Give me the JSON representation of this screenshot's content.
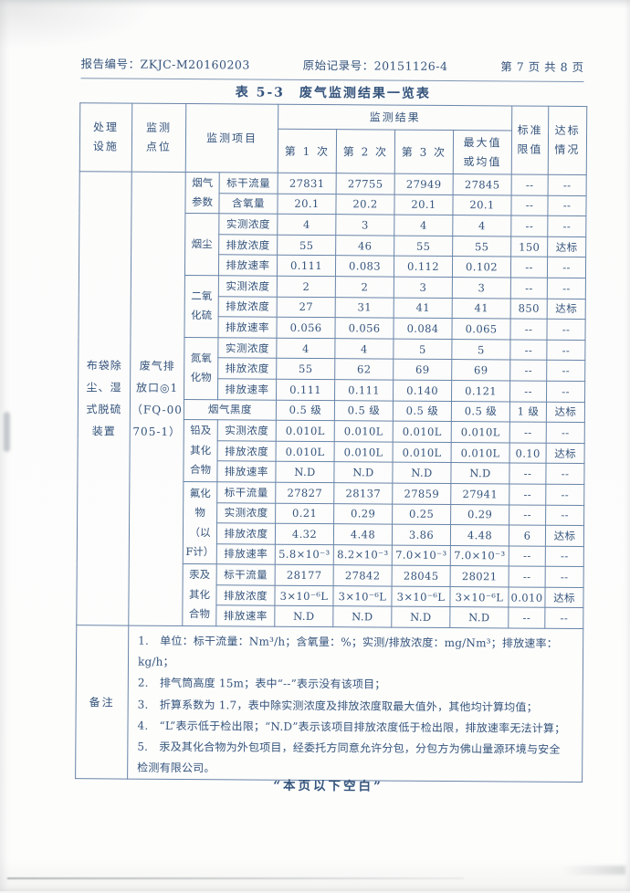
{
  "header": {
    "report_no_label": "报告编号：",
    "report_no": "ZKJC-M20160203",
    "record_no_label": "原始记录号：",
    "record_no": "20151126-4",
    "page_info": "第 7 页 共 8 页"
  },
  "title": "表 5-3　废气监测结果一览表",
  "footer_note": "“本页以下空白”",
  "colors": {
    "ink": "#35547c",
    "grid_line": "#6884a8"
  },
  "table": {
    "columns": {
      "facility": "处理\n设施",
      "point": "监测\n点位",
      "item": "监测项目",
      "results": "监测结果",
      "run1": "第 1 次",
      "run2": "第 2 次",
      "run3": "第 3 次",
      "max": "最大值\n或均值",
      "limit": "标准\n限值",
      "status": "达标\n情况"
    },
    "facility_cell": "布袋除\n尘、湿\n式脱硫\n装置",
    "point_cell": "废气排\n放口◎1\n（FQ-00\n705-1）",
    "groups": [
      {
        "name": "烟气\n参数",
        "rows": [
          {
            "item": "标干流量",
            "v": [
              "27831",
              "27755",
              "27949",
              "27845",
              "--",
              "--"
            ]
          },
          {
            "item": "含氧量",
            "v": [
              "20.1",
              "20.2",
              "20.1",
              "20.1",
              "--",
              "--"
            ]
          }
        ]
      },
      {
        "name": "烟尘",
        "rows": [
          {
            "item": "实测浓度",
            "v": [
              "4",
              "3",
              "4",
              "4",
              "--",
              "--"
            ]
          },
          {
            "item": "排放浓度",
            "v": [
              "55",
              "46",
              "55",
              "55",
              "150",
              "达标"
            ]
          },
          {
            "item": "排放速率",
            "v": [
              "0.111",
              "0.083",
              "0.112",
              "0.102",
              "--",
              "--"
            ]
          }
        ]
      },
      {
        "name": "二氧\n化硫",
        "rows": [
          {
            "item": "实测浓度",
            "v": [
              "2",
              "2",
              "3",
              "3",
              "--",
              "--"
            ]
          },
          {
            "item": "排放浓度",
            "v": [
              "27",
              "31",
              "41",
              "41",
              "850",
              "达标"
            ]
          },
          {
            "item": "排放速率",
            "v": [
              "0.056",
              "0.056",
              "0.084",
              "0.065",
              "--",
              "--"
            ]
          }
        ]
      },
      {
        "name": "氮氧\n化物",
        "rows": [
          {
            "item": "实测浓度",
            "v": [
              "4",
              "4",
              "5",
              "5",
              "--",
              "--"
            ]
          },
          {
            "item": "排放浓度",
            "v": [
              "55",
              "62",
              "69",
              "69",
              "--",
              "--"
            ]
          },
          {
            "item": "排放速率",
            "v": [
              "0.111",
              "0.111",
              "0.140",
              "0.121",
              "--",
              "--"
            ]
          }
        ]
      },
      {
        "name": "烟气黑度",
        "span_item_cols": true,
        "rows": [
          {
            "item": null,
            "v": [
              "0.5 级",
              "0.5 级",
              "0.5 级",
              "0.5 级",
              "1 级",
              "达标"
            ]
          }
        ]
      },
      {
        "name": "铅及\n其化\n合物",
        "rows": [
          {
            "item": "实测浓度",
            "v": [
              "0.010L",
              "0.010L",
              "0.010L",
              "0.010L",
              "--",
              "--"
            ]
          },
          {
            "item": "排放浓度",
            "v": [
              "0.010L",
              "0.010L",
              "0.010L",
              "0.010L",
              "0.10",
              "达标"
            ]
          },
          {
            "item": "排放速率",
            "v": [
              "N.D",
              "N.D",
              "N.D",
              "N.D",
              "--",
              "--"
            ]
          }
        ]
      },
      {
        "name": "氟化\n物\n（以\nF计）",
        "rows": [
          {
            "item": "标干流量",
            "v": [
              "27827",
              "28137",
              "27859",
              "27941",
              "--",
              "--"
            ]
          },
          {
            "item": "实测浓度",
            "v": [
              "0.21",
              "0.29",
              "0.25",
              "0.29",
              "--",
              "--"
            ]
          },
          {
            "item": "排放浓度",
            "v": [
              "4.32",
              "4.48",
              "3.86",
              "4.48",
              "6",
              "达标"
            ]
          },
          {
            "item": "排放速率",
            "v": [
              "5.8×10⁻³",
              "8.2×10⁻³",
              "7.0×10⁻³",
              "7.0×10⁻³",
              "--",
              "--"
            ]
          }
        ]
      },
      {
        "name": "汞及\n其化\n合物",
        "rows": [
          {
            "item": "标干流量",
            "v": [
              "28177",
              "27842",
              "28045",
              "28021",
              "--",
              "--"
            ]
          },
          {
            "item": "排放浓度",
            "v": [
              "3×10⁻⁶L",
              "3×10⁻⁶L",
              "3×10⁻⁶L",
              "3×10⁻⁶L",
              "0.010",
              "达标"
            ]
          },
          {
            "item": "排放速率",
            "v": [
              "N.D",
              "N.D",
              "N.D",
              "N.D",
              "--",
              "--"
            ]
          }
        ]
      }
    ],
    "remark_label": "备注",
    "remarks": [
      "1.　单位：标干流量：Nm³/h；含氧量：%；实测/排放浓度：mg/Nm³；排放速率：kg/h；",
      "2.　排气筒高度 15m；表中“--”表示没有该项目；",
      "3.　折算系数为 1.7，表中除实测浓度及排放浓度取最大值外，其他均计算均值；",
      "4.　“L”表示低于检出限；“N.D”表示该项目排放浓度低于检出限，排放速率无法计算；",
      "5.　汞及其化合物为外包项目，经委托方同意允许分包，分包方为佛山量源环境与安全检测有限公司。"
    ]
  }
}
